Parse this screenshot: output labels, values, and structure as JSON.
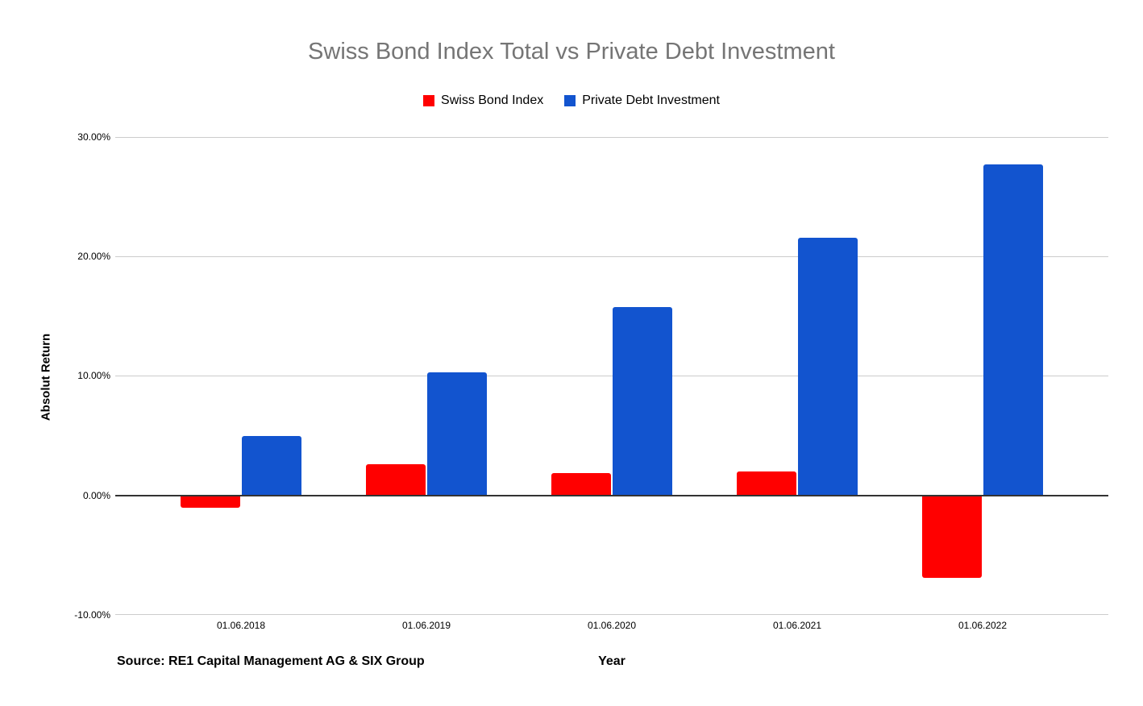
{
  "chart_data": {
    "type": "bar",
    "title": "Swiss Bond Index Total vs Private Debt Investment",
    "categories": [
      "01.06.2018",
      "01.06.2019",
      "01.06.2020",
      "01.06.2021",
      "01.06.2022"
    ],
    "series": [
      {
        "name": "Swiss Bond Index",
        "color": "#ff0000",
        "values": [
          -1.0,
          2.6,
          1.9,
          2.0,
          -6.9
        ]
      },
      {
        "name": "Private Debt Investment",
        "color": "#1254cf",
        "values": [
          5.0,
          10.3,
          15.8,
          21.6,
          27.7
        ]
      }
    ],
    "xlabel": "Year",
    "ylabel": "Absolut Return",
    "ylim": [
      -10,
      30
    ],
    "yticks": [
      30,
      20,
      10,
      0,
      -10
    ],
    "ytick_labels": [
      "30.00%",
      "20.00%",
      "10.00%",
      "0.00%",
      "-10.00%"
    ],
    "grid": true,
    "legend_position": "top",
    "annotations": {
      "source_note": "Source: RE1 Capital Management AG & SIX Group"
    },
    "colors": {
      "title": "#757575",
      "gridline": "#cccccc",
      "zero_line": "#333333",
      "axis_text": "#000000"
    }
  }
}
